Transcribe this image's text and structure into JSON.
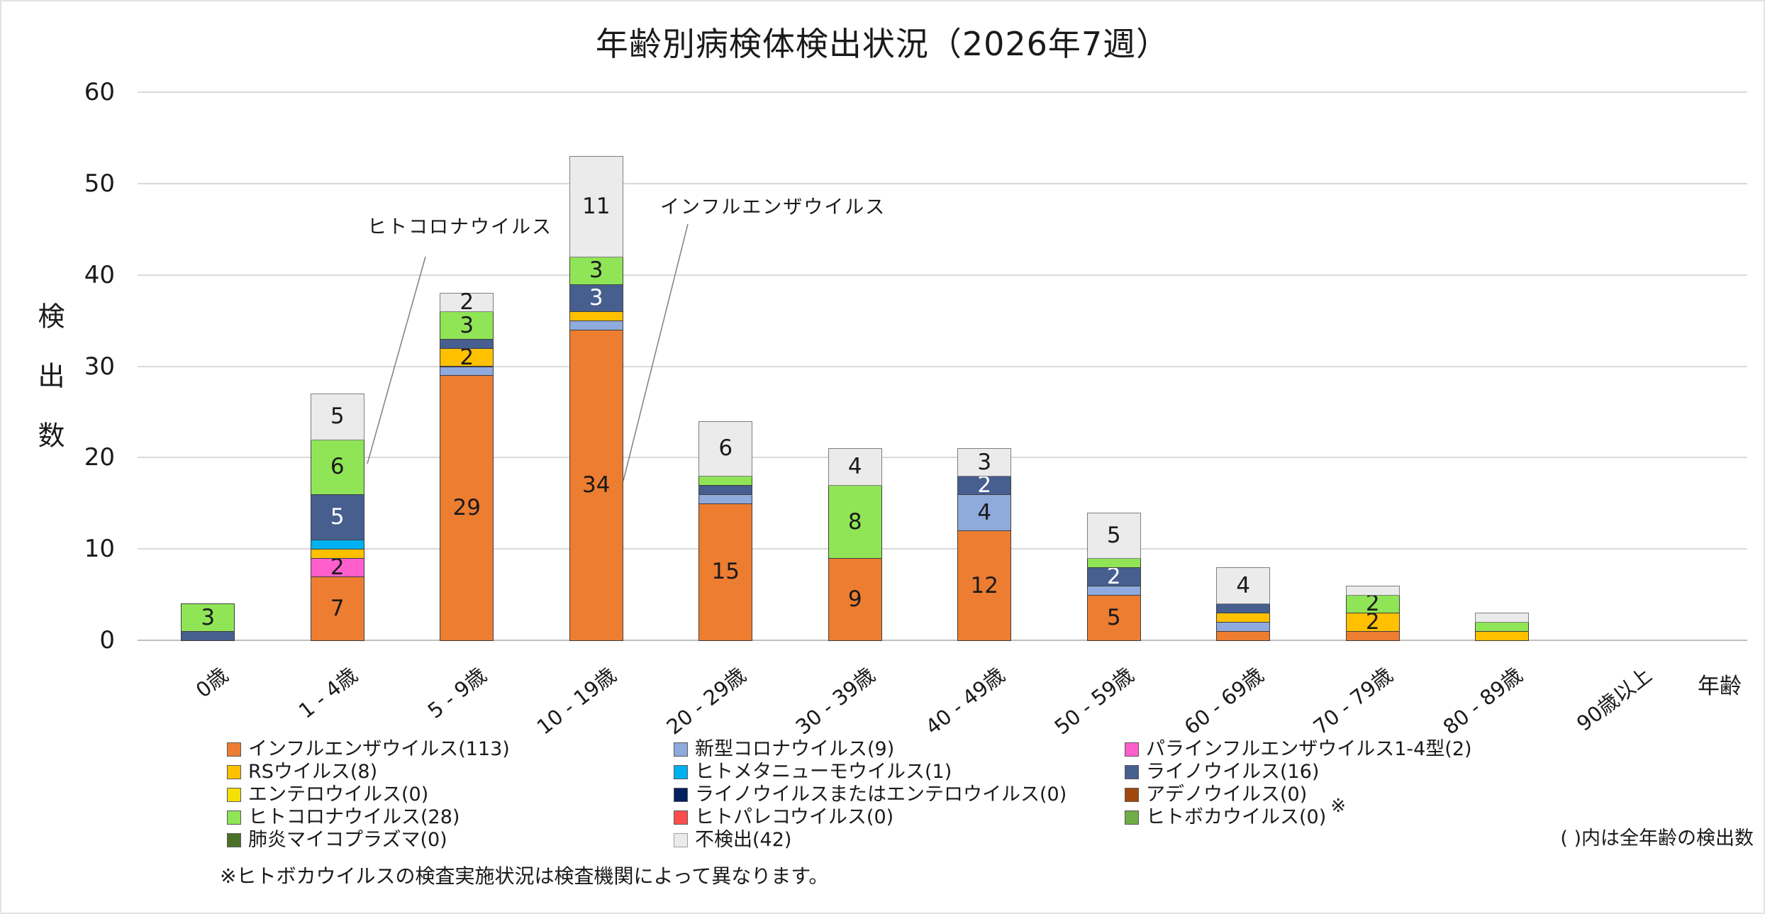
{
  "title": "年齢別病検体検出状況（2026年7週）",
  "annotations": {
    "corona_label": "ヒトコロナウイルス",
    "influenza_label": "インフルエンザウイルス"
  },
  "notes": {
    "paren_note": "( )内は全年齢の検出数",
    "footnote": "※ヒトボカウイルスの検査実施状況は検査機関によって異なります。"
  },
  "chart_data": {
    "type": "bar",
    "stacked": true,
    "title": "年齢別病検体検出状況（2026年7週）",
    "ylabel": "検出数",
    "xlabel": "年齢",
    "ylim": [
      0,
      60
    ],
    "yticks": [
      0,
      10,
      20,
      30,
      40,
      50,
      60
    ],
    "grid": true,
    "legend_position": "bottom",
    "label_min_value": 2,
    "colors": {
      "grid": "#d9d9d9",
      "axis": "#bfbfbf",
      "text": "#1a1a1a"
    },
    "categories": [
      "0歳",
      "1 - 4歳",
      "5 - 9歳",
      "10 - 19歳",
      "20 - 29歳",
      "30 - 39歳",
      "40 - 49歳",
      "50 - 59歳",
      "60 - 69歳",
      "70 - 79歳",
      "80 - 89歳",
      "90歳以上"
    ],
    "series": [
      {
        "name": "インフルエンザウイルス",
        "total": 113,
        "color": "#ED7D31",
        "values": [
          0,
          7,
          29,
          34,
          15,
          9,
          12,
          5,
          1,
          1,
          0,
          0
        ]
      },
      {
        "name": "新型コロナウイルス",
        "total": 9,
        "color": "#8FAADC",
        "values": [
          0,
          0,
          1,
          1,
          1,
          0,
          4,
          1,
          1,
          0,
          0,
          0
        ]
      },
      {
        "name": "パラインフルエンザウイルス1-4型",
        "total": 2,
        "color": "#FF5FCC",
        "values": [
          0,
          2,
          0,
          0,
          0,
          0,
          0,
          0,
          0,
          0,
          0,
          0
        ]
      },
      {
        "name": "RSウイルス",
        "total": 8,
        "color": "#FFC000",
        "values": [
          0,
          1,
          2,
          1,
          0,
          0,
          0,
          0,
          1,
          2,
          1,
          0
        ]
      },
      {
        "name": "ヒトメタニューモウイルス",
        "total": 1,
        "color": "#00B0F0",
        "values": [
          0,
          1,
          0,
          0,
          0,
          0,
          0,
          0,
          0,
          0,
          0,
          0
        ]
      },
      {
        "name": "ライノウイルス",
        "total": 16,
        "color": "#465F8F",
        "dark": true,
        "values": [
          1,
          5,
          1,
          3,
          1,
          0,
          2,
          2,
          1,
          0,
          0,
          0
        ]
      },
      {
        "name": "エンテロウイルス",
        "total": 0,
        "color": "#F5E003",
        "values": [
          0,
          0,
          0,
          0,
          0,
          0,
          0,
          0,
          0,
          0,
          0,
          0
        ]
      },
      {
        "name": "ライノウイルスまたはエンテロウイルス",
        "total": 0,
        "color": "#002060",
        "dark": true,
        "values": [
          0,
          0,
          0,
          0,
          0,
          0,
          0,
          0,
          0,
          0,
          0,
          0
        ]
      },
      {
        "name": "アデノウイルス",
        "total": 0,
        "color": "#A0480E",
        "dark": true,
        "values": [
          0,
          0,
          0,
          0,
          0,
          0,
          0,
          0,
          0,
          0,
          0,
          0
        ]
      },
      {
        "name": "ヒトコロナウイルス",
        "total": 28,
        "color": "#90E557",
        "values": [
          3,
          6,
          3,
          3,
          1,
          8,
          0,
          1,
          0,
          2,
          1,
          0
        ]
      },
      {
        "name": "ヒトパレコウイルス",
        "total": 0,
        "color": "#FF4D4D",
        "values": [
          0,
          0,
          0,
          0,
          0,
          0,
          0,
          0,
          0,
          0,
          0,
          0
        ]
      },
      {
        "name": "ヒトボカウイルス",
        "total": 0,
        "color": "#70AD47",
        "mark": "※",
        "values": [
          0,
          0,
          0,
          0,
          0,
          0,
          0,
          0,
          0,
          0,
          0,
          0
        ]
      },
      {
        "name": "肺炎マイコプラズマ",
        "total": 0,
        "color": "#4A7029",
        "dark": true,
        "values": [
          0,
          0,
          0,
          0,
          0,
          0,
          0,
          0,
          0,
          0,
          0,
          0
        ]
      },
      {
        "name": "不検出",
        "total": 42,
        "color": "#EBEBEB",
        "light": true,
        "values": [
          0,
          5,
          2,
          11,
          6,
          4,
          3,
          5,
          4,
          1,
          1,
          0
        ]
      }
    ],
    "legend_columns": [
      [
        0,
        3,
        6,
        9,
        12
      ],
      [
        1,
        4,
        7,
        10,
        13
      ],
      [
        2,
        5,
        8,
        11
      ]
    ]
  }
}
